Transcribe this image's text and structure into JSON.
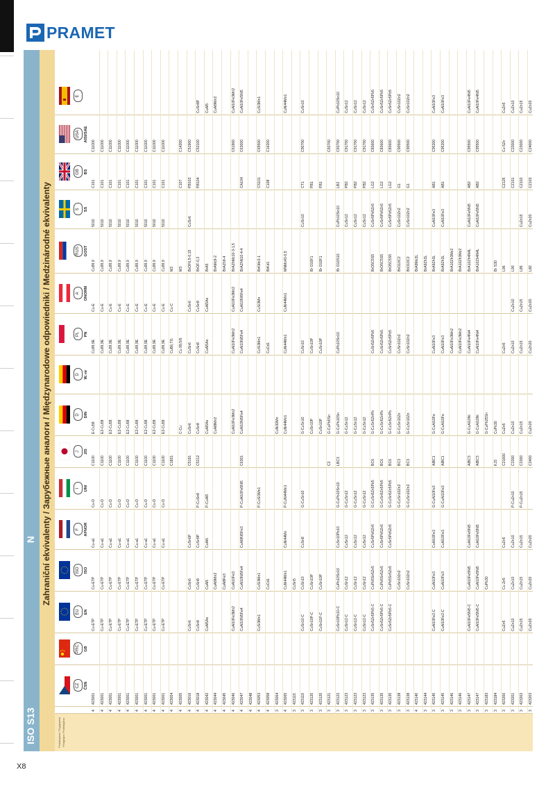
{
  "brand": "PRAMET",
  "page_number": "X8",
  "side_tab": {
    "group": "ISO S13",
    "letter": "N",
    "legend_lines": [
      "Podskupina / Подгруппа",
      "Podgrupa / Podskupina"
    ]
  },
  "title": "Zahraniční ekvivalenty / Зарубежные аналоги / Międzynarodowe odpowiedniki / Medzinárodné ekvivalenty",
  "columns": [
    {
      "badge": "",
      "name": "",
      "flag": "none"
    },
    {
      "badge": "CZ",
      "name": "ČSN",
      "flag": "cz"
    },
    {
      "badge": "PRC",
      "name": "GB",
      "flag": "cn"
    },
    {
      "badge": "EU",
      "name": "EN",
      "flag": "eu"
    },
    {
      "badge": "ISO",
      "name": "ISO",
      "flag": "eu"
    },
    {
      "badge": "F",
      "name": "AFNOR",
      "flag": "fr"
    },
    {
      "badge": "I",
      "name": "UNI",
      "flag": "it"
    },
    {
      "badge": "J",
      "name": "JIS",
      "flag": "jp"
    },
    {
      "badge": "D",
      "name": "DIN",
      "flag": "de"
    },
    {
      "badge": "D",
      "name": "W.-nr",
      "flag": "de"
    },
    {
      "badge": "PL",
      "name": "PN",
      "flag": "pl"
    },
    {
      "badge": "A",
      "name": "ONORM",
      "flag": "at"
    },
    {
      "badge": "RUS",
      "name": "GOST",
      "flag": "ru"
    },
    {
      "badge": "S",
      "name": "SS",
      "flag": "se"
    },
    {
      "badge": "GB",
      "name": "BS",
      "flag": "gb"
    },
    {
      "badge": "USA",
      "name": "AISI/SAE",
      "flag": "us"
    },
    {
      "badge": "E",
      "name": "",
      "flag": "es"
    }
  ],
  "rows": [
    [
      "4",
      "423001",
      "",
      "Cu-ETP",
      "Cu-ETP",
      "Cu-a1",
      "Cu-D",
      "C1100",
      "E-Cu58",
      "",
      "Cu99,9E",
      "Cu-E",
      "Cu99,9",
      "5010",
      "C101",
      "C11000",
      ""
    ],
    [
      "4",
      "423001",
      "",
      "Cu-ETP",
      "Cu-ETP",
      "Cu-a1",
      "Cu-D",
      "C1100",
      "E2-Cu58",
      "",
      "Cu99,9E",
      "Cu-E",
      "Cu99,9",
      "5010",
      "C101",
      "C11000",
      ""
    ],
    [
      "4",
      "423001",
      "",
      "Cu-ETP",
      "Cu-ETP",
      "Cu-a1",
      "Cu-D",
      "C1100",
      "E2-Cu58",
      "",
      "Cu99,9E",
      "Cu-E",
      "Cu99,9",
      "5010",
      "C101",
      "C11000",
      ""
    ],
    [
      "4",
      "423001",
      "",
      "Cu-ETP",
      "Cu-ETP",
      "Cu-a1",
      "Cu-D",
      "C1100",
      "E2-Cu58",
      "",
      "Cu99,9E",
      "Cu-E",
      "Cu99,9",
      "5010",
      "C101",
      "C11000",
      ""
    ],
    [
      "4",
      "423001",
      "",
      "Cu-ETP",
      "Cu-ETP",
      "Cu-a1",
      "Cu-D",
      "C1100",
      "E2-Cu58",
      "",
      "Cu99,9E",
      "Cu-E",
      "Cu99,9",
      "5010",
      "C101",
      "C11000",
      ""
    ],
    [
      "4",
      "423001",
      "",
      "Cu-ETP",
      "Cu-ETP",
      "Cu-a1",
      "Cu-D",
      "C1100",
      "E2-Cu58",
      "",
      "Cu99,9E",
      "Cu-E",
      "Cu99,9",
      "5010",
      "C101",
      "C11000",
      ""
    ],
    [
      "4",
      "423001",
      "",
      "Cu-ETP",
      "Cu-ETP",
      "Cu-a1",
      "Cu-D",
      "C1100",
      "E2-Cu58",
      "",
      "Cu99,9E",
      "Cu-E",
      "Cu99,9",
      "5010",
      "C101",
      "C11000",
      ""
    ],
    [
      "4",
      "423001",
      "",
      "Cu-ETP",
      "Cu-ETP",
      "Cu-a1",
      "Cu-D",
      "C1100",
      "E2-Cu58",
      "",
      "Cu99,9E",
      "Cu-E",
      "Cu99,9",
      "5010",
      "C101",
      "C11000",
      ""
    ],
    [
      "4",
      "423001",
      "",
      "Cu-ETP",
      "Cu-ETP",
      "Cu-a1",
      "Cu-D",
      "C1100",
      "E2-Cu58",
      "",
      "Cu99,9E",
      "Cu-E",
      "Cu99,9",
      "5010",
      "C101",
      "C11000",
      ""
    ],
    [
      "4",
      "423004",
      "",
      "",
      "",
      "",
      "",
      "C1821",
      "",
      "",
      "CuB6,TG",
      "Cu-C",
      "M2",
      "",
      "",
      "",
      ""
    ],
    [
      "4",
      "423005",
      "",
      "",
      "",
      "",
      "",
      "",
      "C-Cu",
      "",
      "Cu 99,5/6",
      "",
      "M3",
      "",
      "C107",
      "C14200",
      ""
    ],
    [
      "4",
      "423016",
      "",
      "CuSn6",
      "CuSn6",
      "CuSn6P",
      "",
      "C5191",
      "CuSn6",
      "",
      "CuSn6",
      "CuSn6",
      "BrOF6,5-0,15",
      "CuSn6",
      "PB102",
      "C51900",
      ""
    ],
    [
      "4",
      "423018",
      "",
      "CuSn8",
      "CuSn8",
      "CuSn9P",
      "P-CuSn8",
      "C5212",
      "CuSn8",
      "",
      "CuSn8",
      "CuSn8",
      "BrOF-0,2",
      "",
      "PB104",
      "C52100",
      "CuSn8P"
    ],
    [
      "4",
      "423042",
      "",
      "CuAl5As",
      "CuAl5",
      "CuAl6",
      "P-CuAl5",
      "",
      "CuAl5As",
      "",
      "CuAl5As",
      "CuAl5As",
      "BrA5",
      "",
      "",
      "",
      "CuAl5"
    ],
    [
      "4",
      "423044",
      "",
      "",
      "CuAl9Mn2",
      "",
      "",
      "",
      "CuAl8Mn2",
      "",
      "",
      "",
      "BrAMc9-2",
      "",
      "",
      "",
      "CuAl9Mn2"
    ],
    [
      "4",
      "423045",
      "",
      "",
      "CuAl8Fe3",
      "",
      "",
      "",
      "",
      "",
      "",
      "",
      "BrAZh9-4",
      "",
      "",
      "",
      ""
    ],
    [
      "4",
      "423046",
      "",
      "CuAl10Fe3Mn2",
      "CuAl10Fe3",
      "",
      "",
      "",
      "CuAl10Fe3Mn2",
      "",
      "CuAl10Fe3Mn2",
      "CuAl10Fe3Mn2",
      "BrAZhMc10-3-1,5",
      "",
      "",
      "C61900",
      "CuAl10Fe3Mn2"
    ],
    [
      "4",
      "423047",
      "",
      "CuAl10Ni5Fe4",
      "CuAl10Ni5Fe4",
      "CuAl9Ni5Fe3",
      "P-CuAl10Fe5Ni5",
      "C6301",
      "CuAl10Ni5Fe4",
      "",
      "CuAl10Ni5Fe4",
      "CuAl10Ni5Fe4",
      "BrAZhN10-4-4",
      "",
      "CA104",
      "C63000",
      "CuAl10Fe5Ni5"
    ],
    [
      "4",
      "423048",
      "",
      "",
      "",
      "",
      "",
      "",
      "",
      "",
      "",
      "",
      "",
      "",
      "",
      "",
      ""
    ],
    [
      "4",
      "423053",
      "",
      "CuSi3Mn1",
      "CuSi3Mn1",
      "",
      "P-CuSi3Mn1",
      "",
      "",
      "",
      "CuSi3Mn1",
      "CuSi3Mn",
      "BrKMc3-1",
      "",
      "CS101",
      "C65500",
      "CuSi3Mn1"
    ],
    [
      "4",
      "423058",
      "",
      "",
      "CuCd1",
      "",
      "",
      "",
      "",
      "",
      "CuCd1",
      "",
      "BrKd1",
      "",
      "C108",
      "C16200",
      ""
    ],
    [
      "3",
      "423064",
      "",
      "",
      "",
      "",
      "",
      "",
      "CuNi30Mn",
      "",
      "",
      "",
      "",
      "",
      "",
      "",
      ""
    ],
    [
      "4",
      "423065",
      "",
      "",
      "CuNi44Mn1",
      "CuNi44Mn",
      "P-CuNi44Mn1",
      "",
      "CuNi44Mn1",
      "",
      "CuNi44Mn1",
      "CuNi44Mn1",
      "MNMc43-0,5",
      "",
      "",
      "",
      "CuNi44Mn1"
    ],
    [
      "3",
      "423115",
      "",
      "",
      "CuSn5",
      "",
      "",
      "",
      "",
      "",
      "",
      "",
      "",
      "",
      "",
      "",
      ""
    ],
    [
      "3",
      "423119",
      "",
      "CuSn10-C",
      "CuSn10",
      "CuSn8",
      "G-CuSn10",
      "",
      "G-CuSn10",
      "",
      "CuSn10",
      "",
      "",
      "CuSn10",
      "CT1",
      "C90700",
      "CuSn10"
    ],
    [
      "3",
      "423120",
      "",
      "CuSn10P-C",
      "CuSn10P",
      "",
      "",
      "",
      "CuSn10P",
      "",
      "CuSn10P",
      "",
      "Br O10F1",
      "",
      "PB1",
      "",
      ""
    ],
    [
      "3",
      "423120",
      "",
      "CuSn11P-C",
      "CuSn10P",
      "",
      "",
      "",
      "CuSn10P",
      "",
      "CuSn10P",
      "",
      "Br O10F1",
      "",
      "PB1",
      "",
      ""
    ],
    [
      "3",
      "423121",
      "",
      "",
      "",
      "",
      "",
      "C2",
      "G-CuPb5Sn",
      "",
      "",
      "",
      "",
      "",
      "",
      "C92700",
      ""
    ],
    [
      "3",
      "423122",
      "",
      "CuSn10Pb10-C",
      "CuPb10Sn10",
      "CuSn10Pb10",
      "G-CuPb10Sn10",
      "LBC3",
      "G-CuPb10Sn",
      "",
      "CuPb10Sn10",
      "",
      "Br O10S10",
      "CuPb10Sn10",
      "LB2",
      "C93700",
      "CuPb10Sn10"
    ],
    [
      "3",
      "423123",
      "",
      "CuSn12-C",
      "CuSn12",
      "CuSn12",
      "G-CuSn12",
      "",
      "G-CuSn12",
      "",
      "",
      "",
      "",
      "CuSn12",
      "PB2",
      "C91700",
      "CuSn12"
    ],
    [
      "3",
      "423123",
      "",
      "CuSn12-C",
      "CuSn12",
      "CuSn12",
      "G-CuSn12",
      "",
      "G-CuSn12",
      "",
      "",
      "",
      "",
      "CuSn12",
      "PB2",
      "C91700",
      "CuSn12"
    ],
    [
      "3",
      "423123",
      "",
      "CuSn12-C",
      "CuSn12",
      "CuSn12",
      "G-CuSn12",
      "",
      "G-CuSn12",
      "",
      "",
      "",
      "",
      "CuSn12",
      "PB2",
      "C91700",
      "CuSn12"
    ],
    [
      "3",
      "423135",
      "",
      "CuSn5Zn5Pb5-C",
      "CuPb5Sn5Zn5",
      "CuSn5Pb5Zn5",
      "G-CuSn5Zn5Pb5",
      "BC6",
      "G-CuSn5ZnPb",
      "",
      "CuSn5Zn5Pb5",
      "",
      "BrO5C5S5",
      "CuSn5Pb5Zn5",
      "LG2",
      "C83600",
      "CuSn5Zn5Pb5"
    ],
    [
      "3",
      "423135",
      "",
      "CuSn5Zn5Pb5-C",
      "CuPb5Sn5Zn5",
      "CuSn5Pb5Zn5",
      "G-CuSn5Zn5Pb5",
      "BC6",
      "G-CuSn5ZnPb",
      "",
      "CuSn5Zn5Pb5",
      "",
      "BrO5C5S5",
      "CuSn5Pb5Zn5",
      "LG2",
      "C83600",
      "CuSn5Zn5Pb5"
    ],
    [
      "3",
      "423135",
      "",
      "CuSn5Zn5Pb5-C",
      "CuPb5Sn5Zn5",
      "CuSn5Pb5Zn5",
      "G-CuSn5Zn5Pb5",
      "BC6",
      "G-CuSn5ZnPb",
      "",
      "CuSn5Zn5Pb5",
      "",
      "BrO5C5S5",
      "CuSn5Pb5Zn5",
      "LG2",
      "C83600",
      "CuSn5Zn5Pb5"
    ],
    [
      "3",
      "423138",
      "",
      "",
      "CuSn10Zn2",
      "",
      "G-CuSn10Zn2",
      "BC3",
      "G-CuSn10Zn",
      "",
      "CuSn10Zn2",
      "",
      "BrO10C2",
      "CuSn10Zn2",
      "G1",
      "C90500",
      "CuSn10Zn2"
    ],
    [
      "3",
      "423138",
      "",
      "",
      "CuSn10Zn2",
      "",
      "G-CuSn10Zn2",
      "BC3",
      "G-CuSn10Zn",
      "",
      "CuSn10Zn2",
      "",
      "BrO10C2",
      "CuSn10Zn2",
      "G1",
      "C90500",
      "CuSn10Zn2"
    ],
    [
      "4",
      "423140",
      "",
      "",
      "",
      "",
      "",
      "",
      "",
      "",
      "",
      "",
      "BrA9Mc2L",
      "",
      "",
      "",
      ""
    ],
    [
      "3",
      "423144",
      "",
      "",
      "",
      "",
      "",
      "",
      "",
      "",
      "",
      "",
      "BrA9Zh3L",
      "",
      "",
      "",
      ""
    ],
    [
      "3",
      "423145",
      "",
      "CuAl10Fe2-C",
      "CuAl10Fe3",
      "CuAl10Fe3",
      "G-CuAl10Fe3",
      "AlBC1",
      "G-CuAl10Fe",
      "",
      "CuAl10Fe3",
      "",
      "BrA9Zh3L",
      "CuAl10Fe3",
      "AB1",
      "C95200",
      "CuAl10Fe3"
    ],
    [
      "3",
      "423145",
      "",
      "CuAl10Fe2-C",
      "CuAl10Fe3",
      "CuAl10Fe3",
      "G-CuAl10Fe3",
      "AlBC1",
      "G-CuAl10Fe",
      "",
      "CuAl10Fe3",
      "",
      "BrA9Zh3L",
      "CuAl10Fe3",
      "AB1",
      "C95200",
      "CuAl10Fe3"
    ],
    [
      "3",
      "423146",
      "",
      "",
      "",
      "",
      "",
      "",
      "",
      "",
      "CuAl10Fe3Mn2",
      "",
      "BrA10Zh3Mc2",
      "",
      "",
      "",
      ""
    ],
    [
      "3",
      "423146",
      "",
      "",
      "",
      "",
      "",
      "",
      "",
      "",
      "CuAl10Fe3Mn2",
      "",
      "BrA10Zh3Mc2",
      "",
      "",
      "",
      ""
    ],
    [
      "3",
      "423147",
      "",
      "CuAl10Fe5Ni5-C",
      "CuAl10Fe5Ni5",
      "CuAl10Fe5Ni5",
      "",
      "AlBC3",
      "G-CuAl10Ni",
      "",
      "CuAl10Fe4Ni4",
      "",
      "BrA10Zh4N4L",
      "CuAl10Fe5Ni5",
      "AB2",
      "C95500",
      "CuAl10Fe4Ni5"
    ],
    [
      "3",
      "423147",
      "",
      "CuAl10Fe5Ni5-C",
      "CuAl10Fe5Ni5",
      "CuAl10Fe5Ni5",
      "",
      "AlBC3",
      "G-CuAl10Ni",
      "",
      "CuAl10Fe4Ni4",
      "",
      "BrA10Zh4N4L",
      "CuAl10Fe5Ni5",
      "AB2",
      "C95500",
      "CuAl10Fe4Ni5"
    ],
    [
      "3",
      "423183",
      "",
      "",
      "CuPb30",
      "",
      "",
      "",
      "G-CuPb25Sn",
      "",
      "",
      "",
      "",
      "",
      "",
      "",
      ""
    ],
    [
      "3",
      "423184",
      "",
      "",
      "",
      "",
      "",
      "KJ3",
      "CuPb30",
      "",
      "",
      "",
      "Br S30",
      "",
      "",
      "",
      ""
    ],
    [
      "3",
      "423200",
      "",
      "CuZn5",
      "Cu Zn5",
      "CuZn5",
      "",
      "C21000",
      "CuZn5",
      "",
      "CuZn5",
      "",
      "L96",
      "",
      "CZ125",
      "Cu-5Zn",
      "CuZn5"
    ],
    [
      "3",
      "423201",
      "",
      "CuZn10",
      "CuZn10",
      "CuZn10",
      "P-CuZn10",
      "C2200",
      "CuZn10",
      "",
      "CuZn10",
      "CuZn10",
      "L90",
      "",
      "CZ101",
      "C22000",
      "CuZn10"
    ],
    [
      "3",
      "423202",
      "",
      "CuZn15",
      "CuZn15",
      "CuZn15",
      "P-CuZn15",
      "C2300",
      "CuZn15",
      "",
      "CuZn15",
      "CuZn15",
      "L85",
      "CuZn15",
      "CZ102",
      "C23000",
      "CuZn15"
    ],
    [
      "3",
      "423203",
      "",
      "CuZn20",
      "CuZn20",
      "CuZn20",
      "",
      "C2400",
      "CuZn20",
      "",
      "CuZn20",
      "CuZn20",
      "L80",
      "CuZn20",
      "CZ103",
      "C24000",
      "CuZn20"
    ]
  ]
}
